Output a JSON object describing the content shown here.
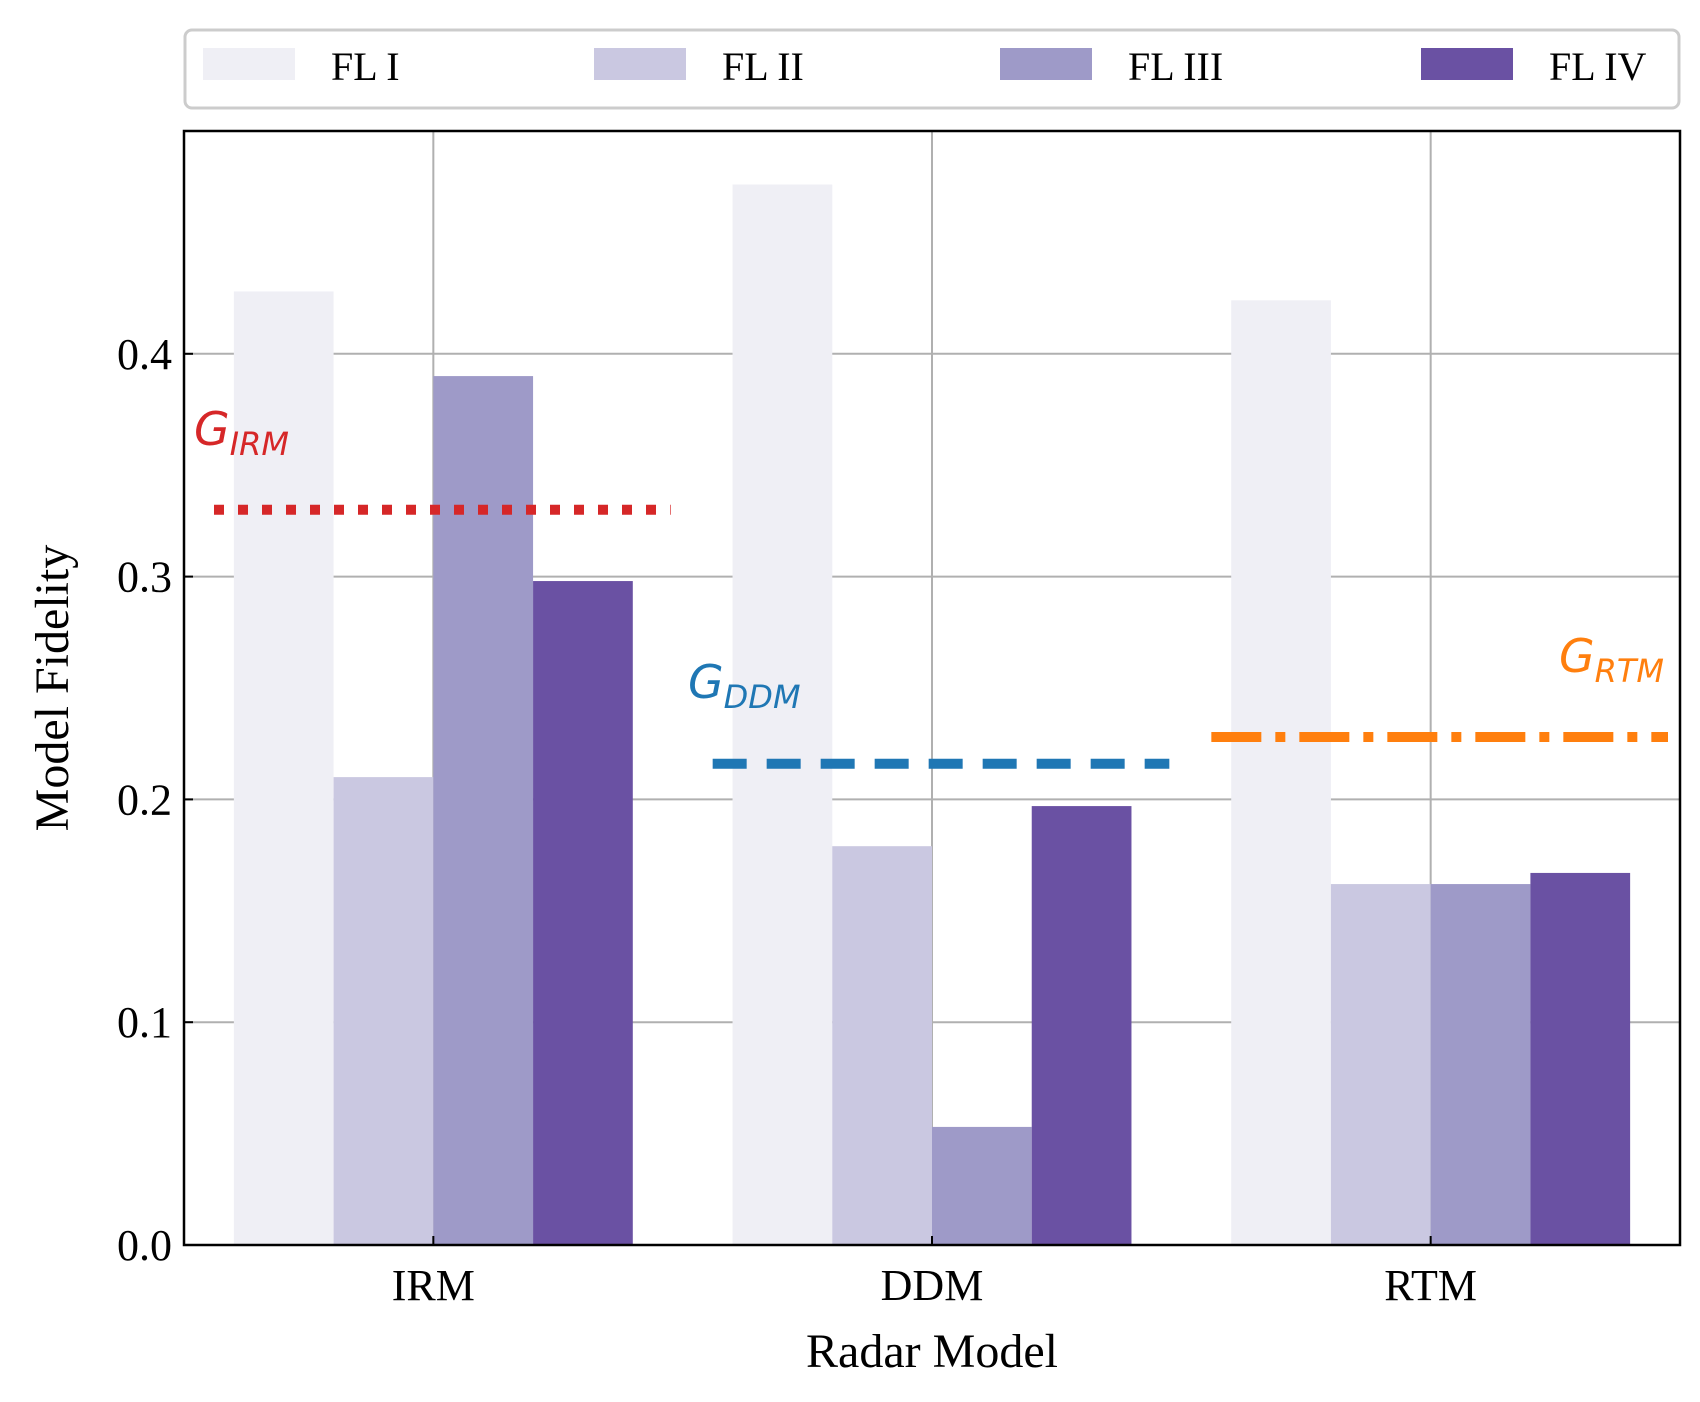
{
  "chart_data": {
    "type": "bar",
    "title": "",
    "xlabel": "Radar Model",
    "ylabel": "Model Fidelity",
    "ylim": [
      0,
      0.5
    ],
    "yticks": [
      "0.0",
      "0.1",
      "0.2",
      "0.3",
      "0.4"
    ],
    "yticks_values": [
      0.0,
      0.1,
      0.2,
      0.3,
      0.4
    ],
    "grid": true,
    "legend_position": "top",
    "categories": [
      "IRM",
      "DDM",
      "RTM"
    ],
    "series": [
      {
        "name": "FL I",
        "color": "#efeff5",
        "values": [
          0.428,
          0.476,
          0.424
        ]
      },
      {
        "name": "FL II",
        "color": "#cac8e1",
        "values": [
          0.21,
          0.179,
          0.162
        ]
      },
      {
        "name": "FL III",
        "color": "#9e9ac8",
        "values": [
          0.39,
          0.053,
          0.162
        ]
      },
      {
        "name": "FL IV",
        "color": "#6a51a3",
        "values": [
          0.298,
          0.197,
          0.167
        ]
      }
    ],
    "reference_lines": [
      {
        "label": "G",
        "subscript": "IRM",
        "value": 0.33,
        "category": "IRM",
        "style": "dotted",
        "color": "#d62728"
      },
      {
        "label": "G",
        "subscript": "DDM",
        "value": 0.216,
        "category": "DDM",
        "style": "dashed",
        "color": "#1f77b4"
      },
      {
        "label": "G",
        "subscript": "RTM",
        "value": 0.228,
        "category": "RTM",
        "style": "dashdot",
        "color": "#ff7f0e"
      }
    ]
  }
}
